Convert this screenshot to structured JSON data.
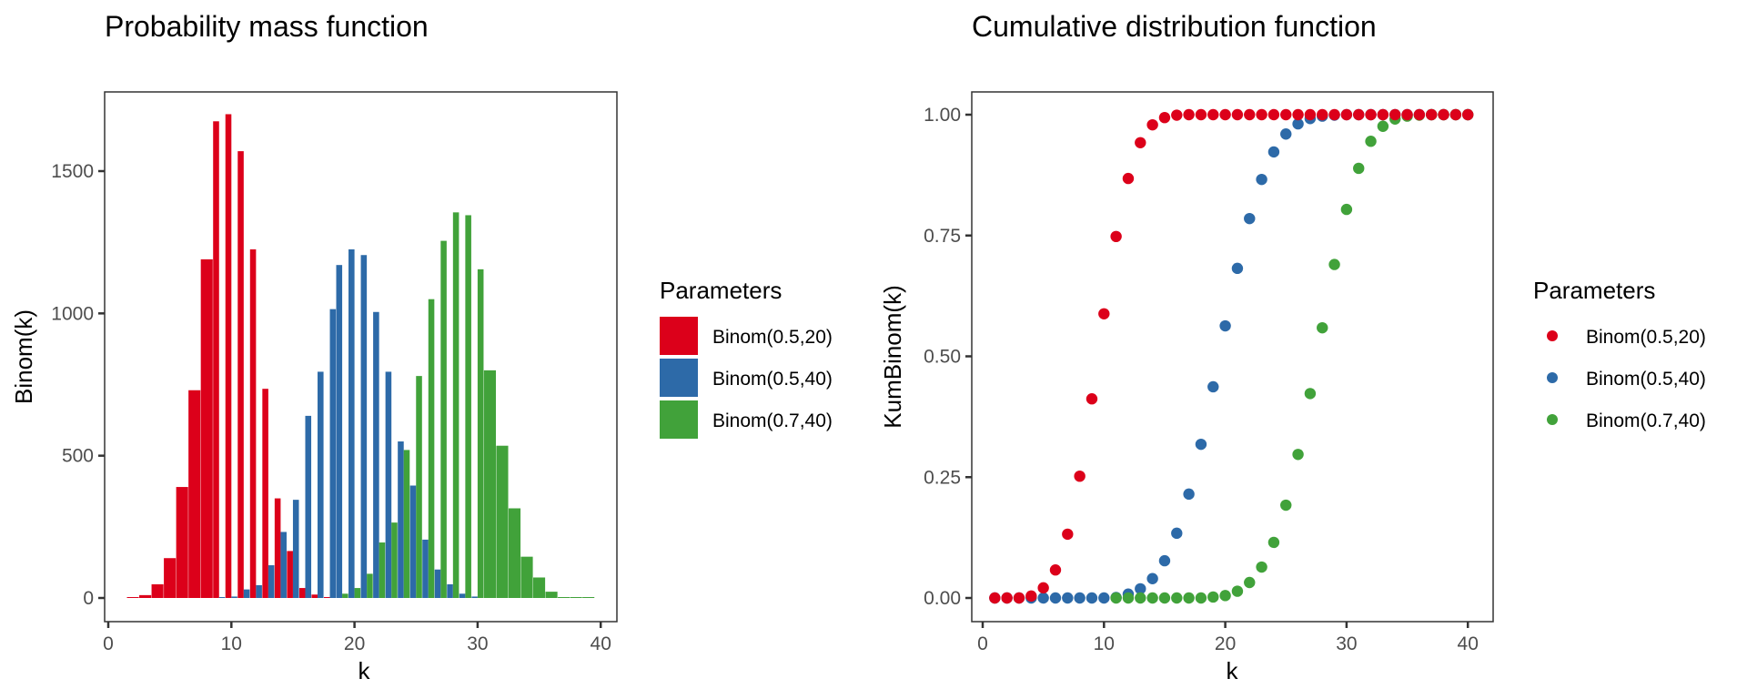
{
  "colors": {
    "Binom(0.5,20)": "#DC001A",
    "Binom(0.5,40)": "#2D6AA8",
    "Binom(0.7,40)": "#41A23A"
  },
  "chart_data": [
    {
      "type": "bar",
      "title": "Probability mass function",
      "xlabel": "k",
      "ylabel": "Binom(k)",
      "xlim": [
        0,
        40
      ],
      "ylim": [
        -80,
        1780
      ],
      "x_ticks": [
        0,
        10,
        20,
        30,
        40
      ],
      "y_ticks": [
        0,
        500,
        1000,
        1500
      ],
      "x_tick_labels": [
        "0",
        "10",
        "20",
        "30",
        "40"
      ],
      "y_tick_labels": [
        "0",
        "500",
        "1000",
        "1500"
      ],
      "grid": false,
      "bar_position": "dodge",
      "legend": {
        "title": "Parameters",
        "placement": "right",
        "entries": [
          "Binom(0.5,20)",
          "Binom(0.5,40)",
          "Binom(0.7,40)"
        ]
      },
      "series": [
        {
          "name": "Binom(0.5,20)",
          "x": [
            2,
            3,
            4,
            5,
            6,
            7,
            8,
            9,
            10,
            11,
            12,
            13,
            14,
            15,
            16,
            17,
            18
          ],
          "values": [
            3,
            10,
            48,
            140,
            390,
            730,
            1190,
            1675,
            1700,
            1570,
            1225,
            735,
            350,
            165,
            35,
            12,
            3
          ]
        },
        {
          "name": "Binom(0.5,40)",
          "x": [
            9,
            10,
            11,
            12,
            13,
            14,
            15,
            16,
            17,
            18,
            19,
            20,
            21,
            22,
            23,
            24,
            25,
            26,
            27,
            28,
            29,
            30
          ],
          "values": [
            3,
            5,
            30,
            45,
            115,
            232,
            345,
            640,
            795,
            1015,
            1170,
            1225,
            1205,
            1005,
            795,
            550,
            395,
            205,
            100,
            48,
            15,
            5
          ]
        },
        {
          "name": "Binom(0.7,40)",
          "x": [
            19,
            20,
            21,
            22,
            23,
            24,
            25,
            26,
            27,
            28,
            29,
            30,
            31,
            32,
            33,
            34,
            35,
            36,
            37,
            38,
            39
          ],
          "values": [
            15,
            35,
            85,
            195,
            265,
            520,
            780,
            1050,
            1255,
            1355,
            1345,
            1155,
            800,
            535,
            315,
            145,
            72,
            22,
            3,
            2,
            1
          ]
        }
      ]
    },
    {
      "type": "scatter",
      "title": "Cumulative distribution function",
      "xlabel": "k",
      "ylabel": "KumBinom(k)",
      "xlim": [
        0,
        40
      ],
      "ylim": [
        -0.05,
        1.05
      ],
      "x_ticks": [
        0,
        10,
        20,
        30,
        40
      ],
      "y_ticks": [
        0,
        0.25,
        0.5,
        0.75,
        1.0
      ],
      "x_tick_labels": [
        "0",
        "10",
        "20",
        "30",
        "40"
      ],
      "y_tick_labels": [
        "0.00",
        "0.25",
        "0.50",
        "0.75",
        "1.00"
      ],
      "grid": false,
      "legend": {
        "title": "Parameters",
        "placement": "right",
        "entries": [
          "Binom(0.5,20)",
          "Binom(0.5,40)",
          "Binom(0.7,40)"
        ]
      },
      "series": [
        {
          "name": "Binom(0.5,40)",
          "x": [
            1,
            2,
            3,
            4,
            5,
            6,
            7,
            8,
            9,
            10,
            11,
            12,
            13,
            14,
            15,
            16,
            17,
            18,
            19,
            20,
            21,
            22,
            23,
            24,
            25,
            26,
            27,
            28,
            29,
            30,
            31,
            32,
            33,
            34,
            35,
            36,
            37,
            38,
            39,
            40
          ],
          "values": [
            0,
            0,
            0,
            0,
            0,
            0,
            0,
            0,
            0,
            0,
            0.001,
            0.008,
            0.019,
            0.04,
            0.077,
            0.134,
            0.215,
            0.318,
            0.437,
            0.563,
            0.682,
            0.785,
            0.866,
            0.923,
            0.96,
            0.981,
            0.992,
            0.997,
            0.999,
            1,
            1,
            1,
            1,
            1,
            1,
            1,
            1,
            1,
            1,
            1
          ]
        },
        {
          "name": "Binom(0.7,40)",
          "x": [
            11,
            12,
            13,
            14,
            15,
            16,
            17,
            18,
            19,
            20,
            21,
            22,
            23,
            24,
            25,
            26,
            27,
            28,
            29,
            30,
            31,
            32,
            33,
            34,
            35,
            36,
            37,
            38,
            39,
            40
          ],
          "values": [
            0,
            0,
            0,
            0,
            0,
            0,
            0,
            0,
            0.002,
            0.005,
            0.014,
            0.032,
            0.064,
            0.115,
            0.192,
            0.297,
            0.423,
            0.559,
            0.69,
            0.804,
            0.889,
            0.945,
            0.976,
            0.991,
            0.997,
            0.999,
            1,
            1,
            1,
            1
          ]
        },
        {
          "name": "Binom(0.5,20)",
          "x": [
            1,
            2,
            3,
            4,
            5,
            6,
            7,
            8,
            9,
            10,
            11,
            12,
            13,
            14,
            15,
            16,
            17,
            18,
            19,
            20,
            21,
            22,
            23,
            24,
            25,
            26,
            27,
            28,
            29,
            30,
            31,
            32,
            33,
            34,
            35,
            36,
            37,
            38,
            39,
            40
          ],
          "values": [
            0,
            0,
            0,
            0.004,
            0.021,
            0.058,
            0.132,
            0.252,
            0.412,
            0.588,
            0.748,
            0.868,
            0.942,
            0.979,
            0.994,
            0.999,
            1,
            1,
            1,
            1,
            1,
            1,
            1,
            1,
            1,
            1,
            1,
            1,
            1,
            1,
            1,
            1,
            1,
            1,
            1,
            1,
            1,
            1,
            1,
            1
          ]
        }
      ]
    }
  ]
}
